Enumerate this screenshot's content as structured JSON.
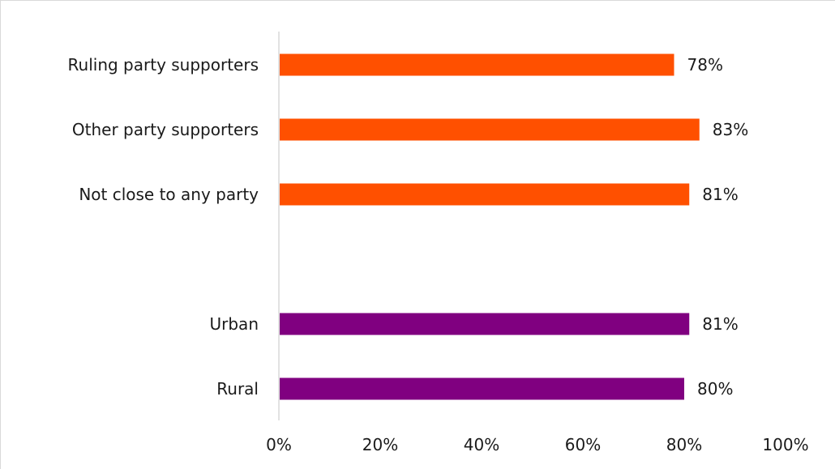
{
  "chart_data": {
    "type": "bar",
    "orientation": "horizontal",
    "title": "",
    "xlabel": "",
    "ylabel": "",
    "xlim": [
      0,
      100
    ],
    "x_ticks": [
      "0%",
      "20%",
      "40%",
      "60%",
      "80%",
      "100%"
    ],
    "grid": false,
    "legend": "none",
    "categories": [
      "Ruling party supporters",
      "Other party supporters",
      "Not close to any party",
      "Urban",
      "Rural"
    ],
    "values": [
      78,
      83,
      81,
      81,
      80
    ],
    "value_labels": [
      "78%",
      "83%",
      "81%",
      "81%",
      "80%"
    ],
    "bar_colors": [
      "#ff5000",
      "#ff5000",
      "#ff5000",
      "#800080",
      "#800080"
    ]
  }
}
